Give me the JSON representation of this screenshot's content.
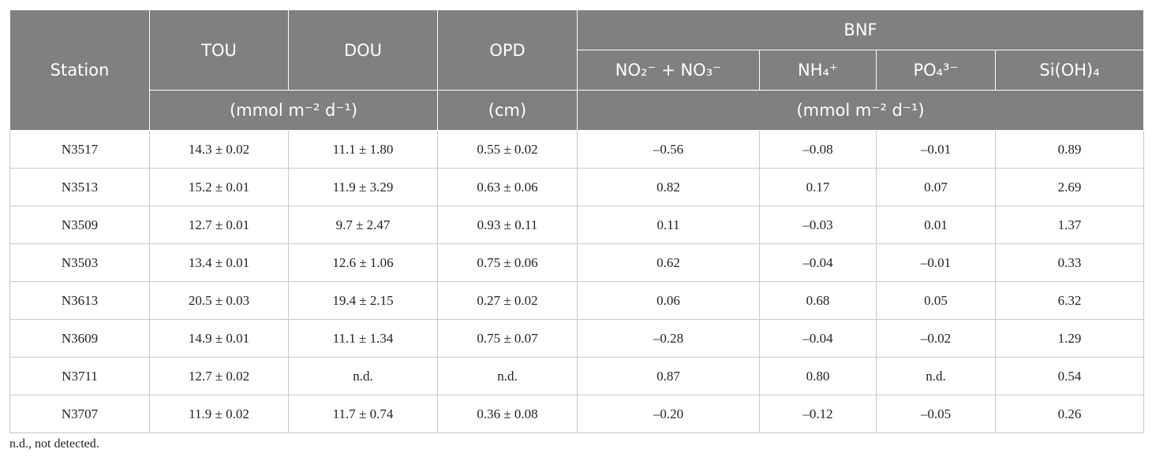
{
  "header": {
    "station": "Station",
    "tou": "TOU",
    "dou": "DOU",
    "opd": "OPD",
    "bnf": "BNF",
    "bnf_columns": [
      "NO₂⁻ + NO₃⁻",
      "NH₄⁺",
      "PO₄³⁻",
      "Si(OH)₄"
    ],
    "units_oxygen": "(mmol m⁻² d⁻¹)",
    "units_opd": "(cm)",
    "units_bnf": "(mmol m⁻² d⁻¹)"
  },
  "table": {
    "rows": [
      [
        "N3517",
        "14.3 ± 0.02",
        "11.1 ± 1.80",
        "0.55 ± 0.02",
        "–0.56",
        "–0.08",
        "–0.01",
        "0.89"
      ],
      [
        "N3513",
        "15.2 ± 0.01",
        "11.9 ± 3.29",
        "0.63 ± 0.06",
        "0.82",
        "0.17",
        "0.07",
        "2.69"
      ],
      [
        "N3509",
        "12.7 ± 0.01",
        "9.7 ± 2.47",
        "0.93 ± 0.11",
        "0.11",
        "–0.03",
        "0.01",
        "1.37"
      ],
      [
        "N3503",
        "13.4 ± 0.01",
        "12.6 ± 1.06",
        "0.75 ± 0.06",
        "0.62",
        "–0.04",
        "–0.01",
        "0.33"
      ],
      [
        "N3613",
        "20.5 ± 0.03",
        "19.4 ± 2.15",
        "0.27 ± 0.02",
        "0.06",
        "0.68",
        "0.05",
        "6.32"
      ],
      [
        "N3609",
        "14.9 ± 0.01",
        "11.1 ± 1.34",
        "0.75 ± 0.07",
        "–0.28",
        "–0.04",
        "–0.02",
        "1.29"
      ],
      [
        "N3711",
        "12.7 ± 0.02",
        "n.d.",
        "n.d.",
        "0.87",
        "0.80",
        "n.d.",
        "0.54"
      ],
      [
        "N3707",
        "11.9 ± 0.02",
        "11.7 ± 0.74",
        "0.36 ± 0.08",
        "–0.20",
        "–0.12",
        "–0.05",
        "0.26"
      ]
    ]
  },
  "footnote": "n.d., not detected."
}
